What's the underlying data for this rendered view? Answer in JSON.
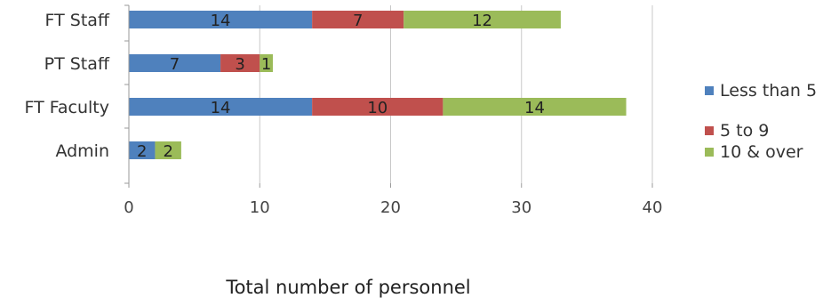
{
  "chart_data": {
    "type": "bar",
    "orientation": "horizontal",
    "stacked": true,
    "categories": [
      "FT Staff",
      "PT Staff",
      "FT Faculty",
      "Admin"
    ],
    "series": [
      {
        "name": "Less than 5",
        "values": [
          14,
          7,
          14,
          2
        ],
        "color": "#4f81bd"
      },
      {
        "name": "5 to 9",
        "values": [
          7,
          3,
          10,
          0
        ],
        "color": "#c0504d"
      },
      {
        "name": "10 & over",
        "values": [
          12,
          1,
          14,
          2
        ],
        "color": "#9bbb59"
      }
    ],
    "xlim": [
      0,
      40
    ],
    "xticks": [
      0,
      10,
      20,
      30,
      40
    ],
    "xlabel": "Total number of personnel",
    "ylabel": "",
    "title": "",
    "grid": "vertical",
    "legend_position": "right"
  }
}
